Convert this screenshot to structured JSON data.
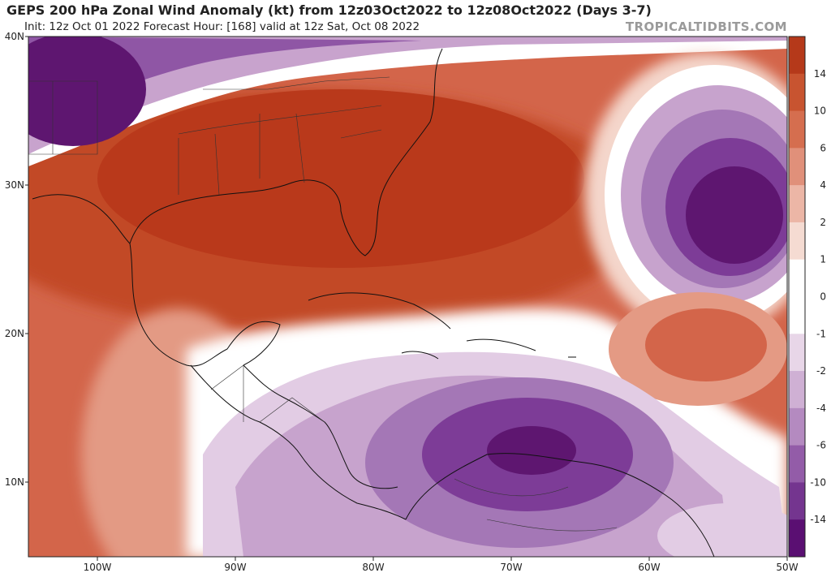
{
  "header": {
    "title": "GEPS 200 hPa Zonal Wind Anomaly (kt) from 12z03Oct2022 to 12z08Oct2022 (Days 3-7)",
    "subtitle": "Init: 12z Oct 01 2022   Forecast Hour: [168]   valid at 12z Sat, Oct 08 2022",
    "credit": "TROPICALTIDBITS.COM"
  },
  "axes": {
    "lat_labels": [
      "40N",
      "30N",
      "20N",
      "10N"
    ],
    "lon_labels": [
      "100W",
      "90W",
      "80W",
      "70W",
      "60W",
      "50W"
    ]
  },
  "colorbar": {
    "labels": [
      "14",
      "10",
      "6",
      "4",
      "2",
      "1",
      "0",
      "-1",
      "-2",
      "-4",
      "-6",
      "-10",
      "-14"
    ],
    "colors": [
      "#b5391a",
      "#c85430",
      "#d56e4f",
      "#e0907a",
      "#ecb6a6",
      "#f5dbd2",
      "#ffffff",
      "#ffffff",
      "#e8d6e8",
      "#cfb0d4",
      "#b48ac0",
      "#935ca8",
      "#74358f",
      "#5a0f72"
    ]
  },
  "legend_palette": {
    "pos_strong": "#bf3e1b",
    "pos_mid": "#d36446",
    "pos_light": "#e49a84",
    "pos_pale": "#f4d6cb",
    "neg_pale": "#e2cce4",
    "neg_light": "#c7a3cd",
    "neg_mid": "#a477b6",
    "neg_strong": "#7d3c97",
    "neg_deep": "#5e1670"
  }
}
